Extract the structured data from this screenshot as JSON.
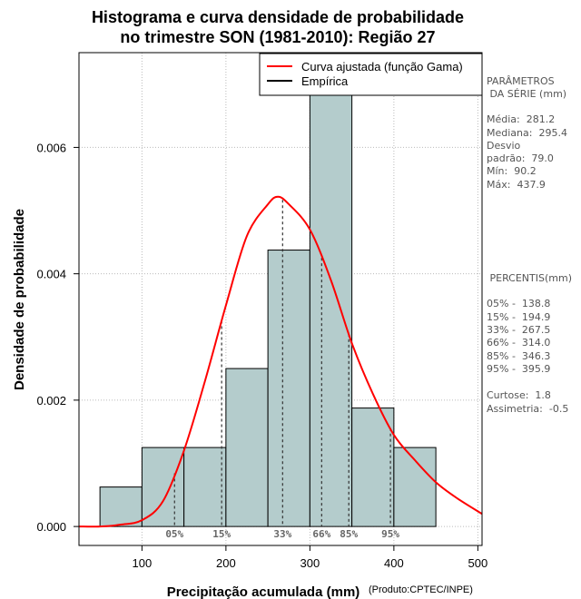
{
  "chart_data": {
    "type": "histogram",
    "title_line1": "Histograma e curva densidade de probabilidade",
    "title_line2": "no trimestre SON (1981-2010): Região 27",
    "xlabel": "Precipitação acumulada (mm)",
    "ylabel": "Densidade de probabilidade",
    "credit": "(Produto:CPTEC/INPE)",
    "xlim": [
      25,
      505
    ],
    "ylim": [
      -0.0003,
      0.0075
    ],
    "x_ticks": [
      100,
      200,
      300,
      400,
      500
    ],
    "y_ticks": [
      0.0,
      0.002,
      0.004,
      0.006
    ],
    "y_tick_labels": [
      "0.000",
      "0.002",
      "0.004",
      "0.006"
    ],
    "bins": [
      {
        "from": 50,
        "to": 100,
        "density": 0.000625
      },
      {
        "from": 100,
        "to": 150,
        "density": 0.00125
      },
      {
        "from": 150,
        "to": 200,
        "density": 0.00125
      },
      {
        "from": 200,
        "to": 250,
        "density": 0.0025
      },
      {
        "from": 250,
        "to": 300,
        "density": 0.004375
      },
      {
        "from": 300,
        "to": 350,
        "density": 0.006875
      },
      {
        "from": 350,
        "to": 400,
        "density": 0.001875
      },
      {
        "from": 400,
        "to": 450,
        "density": 0.00125
      }
    ],
    "fitted_curve": {
      "name": "Curva ajustada (função Gama)",
      "color": "#ff0000",
      "x": [
        25,
        50,
        75,
        100,
        125,
        150,
        175,
        200,
        225,
        250,
        262,
        275,
        300,
        325,
        350,
        375,
        400,
        425,
        450,
        475,
        505
      ],
      "y": [
        0.0,
        0.0,
        3e-05,
        0.0001,
        0.0004,
        0.0012,
        0.0023,
        0.0035,
        0.0046,
        0.0051,
        0.00522,
        0.0051,
        0.0047,
        0.0039,
        0.0029,
        0.0021,
        0.00145,
        0.00105,
        0.0007,
        0.00045,
        0.0002
      ]
    },
    "legend": {
      "position": "top-right",
      "items": [
        {
          "label": "Curva ajustada (função Gama)",
          "color": "#ff0000"
        },
        {
          "label": "Empírica",
          "color": "#000000"
        }
      ]
    },
    "percentile_lines": [
      {
        "label": "05%",
        "value": 138.8
      },
      {
        "label": "15%",
        "value": 194.9
      },
      {
        "label": "33%",
        "value": 267.5
      },
      {
        "label": "66%",
        "value": 314.0
      },
      {
        "label": "85%",
        "value": 346.3
      },
      {
        "label": "95%",
        "value": 395.9
      }
    ],
    "colors": {
      "bar_fill": "#b4cccc",
      "bar_stroke": "#000000",
      "grid": "#bbbbbb",
      "percentile_text": "#666666"
    }
  },
  "side_panel": {
    "params_heading_1": "PARÂMETROS",
    "params_heading_2": " DA SÉRIE (mm)",
    "media": "Média:  281.2",
    "mediana": "Mediana:  295.4",
    "desvio_1": "Desvio",
    "desvio_2": "padrão:  79.0",
    "minimo": "Mín:  90.2",
    "maximo": "Máx:  437.9",
    "percentis_heading": " PERCENTIS(mm)",
    "p05": "05% -  138.8",
    "p15": "15% -  194.9",
    "p33": "33% -  267.5",
    "p66": "66% -  314.0",
    "p85": "85% -  346.3",
    "p95": "95% -  395.9",
    "curtose": "Curtose:  1.8",
    "assimetria": "Assimetria:  -0.5"
  }
}
